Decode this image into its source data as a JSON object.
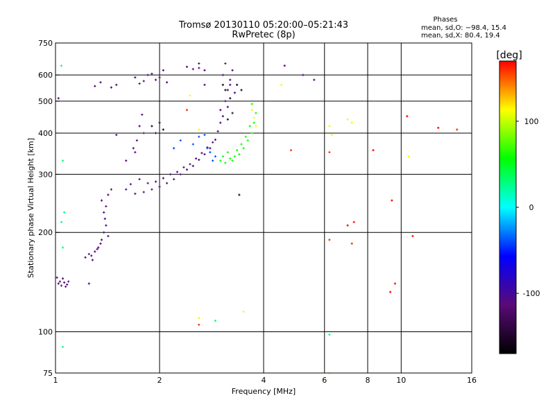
{
  "chart_data": {
    "type": "scatter",
    "title": "Tromsø 20130110 05:20:00–05:21:43",
    "subtitle": "RwPretec (8p)",
    "phases_block": {
      "heading": "Phases",
      "line_o": "mean, sd,O: −98.4, 15.4",
      "line_x": "mean, sd,X:  80.4, 19.4"
    },
    "xlabel": "Frequency [MHz]",
    "ylabel": "Stationary phase Virtual Height [km]",
    "x_scale": "log",
    "y_scale": "log",
    "xlim": [
      1,
      16
    ],
    "ylim": [
      75,
      750
    ],
    "x_ticks": [
      {
        "value": 1,
        "label": "1"
      },
      {
        "value": 2,
        "label": "2"
      },
      {
        "value": 4,
        "label": "4"
      },
      {
        "value": 6,
        "label": "6"
      },
      {
        "value": 8,
        "label": "8"
      },
      {
        "value": 10,
        "label": "10"
      },
      {
        "value": 16,
        "label": "16"
      }
    ],
    "x_gridlines": [
      2,
      4,
      6,
      8,
      10,
      16
    ],
    "y_ticks": [
      {
        "value": 75,
        "label": "75"
      },
      {
        "value": 100,
        "label": "100"
      },
      {
        "value": 200,
        "label": "200"
      },
      {
        "value": 300,
        "label": "300"
      },
      {
        "value": 400,
        "label": "400"
      },
      {
        "value": 500,
        "label": "500"
      },
      {
        "value": 600,
        "label": "600"
      },
      {
        "value": 750,
        "label": "750"
      }
    ],
    "y_gridlines": [
      100,
      200,
      300,
      400,
      500,
      600
    ],
    "grid": true,
    "colorbar": {
      "label": "[deg]",
      "min": -170,
      "max": 170,
      "ticks": [
        {
          "value": 100,
          "label": "100"
        },
        {
          "value": 0,
          "label": "0"
        },
        {
          "value": -100,
          "label": "-100"
        }
      ],
      "palette": [
        "#000000",
        "#5a0a78",
        "#0000ff",
        "#00ffff",
        "#00ff00",
        "#ffff00",
        "#ff0000"
      ]
    },
    "series": [
      {
        "phase": -110,
        "points": [
          [
            1.02,
            140
          ],
          [
            1.04,
            138
          ],
          [
            1.06,
            141
          ],
          [
            1.08,
            139
          ],
          [
            1.05,
            145
          ],
          [
            1.03,
            142
          ],
          [
            1.07,
            137
          ],
          [
            1.01,
            146
          ],
          [
            1.09,
            142
          ],
          [
            1.22,
            168
          ],
          [
            1.25,
            172
          ],
          [
            1.28,
            165
          ],
          [
            1.3,
            175
          ],
          [
            1.33,
            180
          ],
          [
            1.36,
            190
          ],
          [
            1.38,
            200
          ],
          [
            1.4,
            210
          ],
          [
            1.35,
            185
          ],
          [
            1.32,
            178
          ],
          [
            1.27,
            170
          ],
          [
            1.42,
            195
          ],
          [
            1.39,
            220
          ],
          [
            1.4,
            240
          ],
          [
            1.42,
            260
          ],
          [
            1.45,
            270
          ],
          [
            1.38,
            230
          ],
          [
            1.36,
            250
          ],
          [
            1.6,
            270
          ],
          [
            1.7,
            262
          ],
          [
            1.8,
            265
          ],
          [
            1.9,
            270
          ],
          [
            2.0,
            275
          ],
          [
            2.1,
            282
          ],
          [
            2.2,
            290
          ],
          [
            2.3,
            300
          ],
          [
            2.4,
            310
          ],
          [
            2.5,
            318
          ],
          [
            2.6,
            332
          ],
          [
            2.7,
            345
          ],
          [
            2.8,
            360
          ],
          [
            2.9,
            382
          ],
          [
            2.95,
            405
          ],
          [
            3.0,
            430
          ],
          [
            1.65,
            280
          ],
          [
            1.75,
            290
          ],
          [
            1.85,
            282
          ],
          [
            1.95,
            285
          ],
          [
            2.05,
            292
          ],
          [
            2.15,
            300
          ],
          [
            2.25,
            305
          ],
          [
            2.35,
            315
          ],
          [
            2.45,
            322
          ],
          [
            2.55,
            335
          ],
          [
            2.65,
            348
          ],
          [
            2.75,
            362
          ],
          [
            2.85,
            375
          ],
          [
            1.7,
            350
          ],
          [
            1.72,
            380
          ],
          [
            1.75,
            420
          ],
          [
            1.78,
            455
          ],
          [
            1.68,
            360
          ],
          [
            1.8,
            400
          ],
          [
            1.45,
            550
          ],
          [
            1.5,
            560
          ],
          [
            1.7,
            590
          ],
          [
            1.8,
            575
          ],
          [
            1.9,
            605
          ],
          [
            2.0,
            590
          ],
          [
            2.05,
            620
          ],
          [
            1.95,
            580
          ],
          [
            1.85,
            600
          ],
          [
            2.1,
            570
          ],
          [
            1.75,
            565
          ],
          [
            2.4,
            635
          ],
          [
            2.5,
            625
          ],
          [
            2.6,
            630
          ],
          [
            2.7,
            620
          ],
          [
            3.05,
            450
          ],
          [
            3.1,
            500
          ],
          [
            3.15,
            540
          ],
          [
            3.2,
            580
          ],
          [
            3.25,
            620
          ],
          [
            3.1,
            650
          ],
          [
            3.05,
            600
          ],
          [
            3.2,
            560
          ],
          [
            3.3,
            530
          ],
          [
            3.15,
            480
          ],
          [
            3.0,
            470
          ],
          [
            1.02,
            510
          ],
          [
            1.3,
            555
          ],
          [
            1.35,
            570
          ],
          [
            1.6,
            330
          ],
          [
            1.5,
            395
          ],
          [
            2.7,
            560
          ],
          [
            2.6,
            650
          ],
          [
            4.6,
            640
          ],
          [
            5.2,
            600
          ],
          [
            5.6,
            580
          ],
          [
            1.25,
            140
          ]
        ]
      },
      {
        "phase": -145,
        "points": [
          [
            1.9,
            420
          ],
          [
            2.0,
            430
          ],
          [
            1.95,
            400
          ],
          [
            2.05,
            410
          ],
          [
            3.05,
            560
          ],
          [
            3.1,
            540
          ],
          [
            3.2,
            510
          ],
          [
            3.15,
            440
          ],
          [
            3.25,
            460
          ],
          [
            3.35,
            560
          ],
          [
            3.45,
            540
          ],
          [
            3.4,
            260
          ]
        ]
      },
      {
        "phase": -40,
        "points": [
          [
            2.2,
            360
          ],
          [
            2.3,
            380
          ],
          [
            2.6,
            390
          ],
          [
            2.7,
            395
          ],
          [
            2.75,
            360
          ],
          [
            2.85,
            330
          ],
          [
            2.9,
            340
          ],
          [
            2.8,
            350
          ],
          [
            2.5,
            370
          ]
        ]
      },
      {
        "phase": 60,
        "points": [
          [
            3.0,
            330
          ],
          [
            3.1,
            325
          ],
          [
            3.2,
            335
          ],
          [
            3.3,
            340
          ],
          [
            3.4,
            345
          ],
          [
            3.5,
            360
          ],
          [
            3.6,
            380
          ],
          [
            3.7,
            400
          ],
          [
            3.75,
            430
          ],
          [
            3.8,
            460
          ],
          [
            3.7,
            490
          ],
          [
            3.05,
            340
          ],
          [
            3.15,
            350
          ],
          [
            3.25,
            330
          ],
          [
            3.45,
            370
          ],
          [
            3.55,
            390
          ],
          [
            3.65,
            420
          ],
          [
            3.35,
            355
          ]
        ]
      },
      {
        "phase": 110,
        "points": [
          [
            3.8,
            420
          ],
          [
            3.75,
            445
          ],
          [
            3.7,
            470
          ],
          [
            2.45,
            520
          ],
          [
            2.6,
            410
          ],
          [
            6.2,
            420
          ],
          [
            6.3,
            395
          ],
          [
            7.0,
            440
          ],
          [
            7.2,
            430
          ],
          [
            6.2,
            75
          ],
          [
            3.5,
            115
          ],
          [
            2.6,
            110
          ],
          [
            4.5,
            560
          ],
          [
            10.5,
            340
          ]
        ]
      },
      {
        "phase": 160,
        "points": [
          [
            2.4,
            470
          ],
          [
            6.2,
            350
          ],
          [
            4.8,
            355
          ],
          [
            7.2,
            185
          ],
          [
            14.5,
            410
          ],
          [
            6.2,
            190
          ],
          [
            2.6,
            105
          ]
        ]
      },
      {
        "phase": 30,
        "points": [
          [
            1.05,
            90
          ],
          [
            1.05,
            180
          ],
          [
            1.04,
            215
          ],
          [
            1.06,
            230
          ],
          [
            1.05,
            330
          ],
          [
            1.04,
            640
          ],
          [
            6.2,
            98
          ],
          [
            2.9,
            108
          ]
        ]
      },
      {
        "phase": 170,
        "points": [
          [
            7.0,
            210
          ],
          [
            7.3,
            215
          ],
          [
            10.8,
            195
          ],
          [
            12.8,
            415
          ],
          [
            9.4,
            250
          ],
          [
            10.4,
            450
          ],
          [
            8.3,
            355
          ],
          [
            9.6,
            140
          ],
          [
            9.3,
            132
          ]
        ]
      }
    ]
  }
}
